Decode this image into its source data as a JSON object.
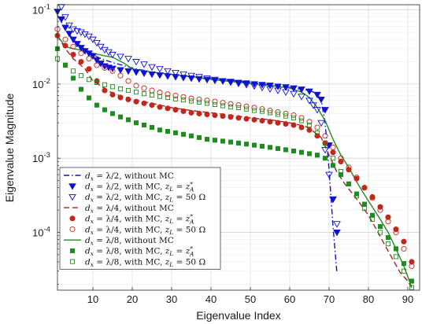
{
  "chart_data": {
    "type": "scatter",
    "xlabel": "Eigenvalue Index",
    "ylabel": "Eigenvalue Magnitude",
    "xlim": [
      1,
      93
    ],
    "ylim_log10": [
      -4.78,
      -0.93
    ],
    "xticks": [
      10,
      20,
      30,
      40,
      50,
      60,
      70,
      80,
      90
    ],
    "xtick_labels": [
      "10",
      "20",
      "30",
      "40",
      "50",
      "60",
      "70",
      "80",
      "90"
    ],
    "yticks_exp": [
      -4,
      -3,
      -2,
      -1
    ],
    "ytick_base": "10",
    "ytick_exponents": [
      "-4",
      "-3",
      "-2",
      "-1"
    ],
    "grid": true,
    "legend_position": "bottom-left",
    "series": [
      {
        "name": "dx = λ/2, without MC",
        "style": "dashdot",
        "color": "#1010d0",
        "x": [
          1,
          3,
          5,
          7,
          10,
          12,
          15,
          20,
          25,
          30,
          35,
          40,
          45,
          50,
          55,
          60,
          63,
          65,
          66,
          67,
          68,
          69,
          70,
          71,
          72
        ],
        "y": [
          0.085,
          0.055,
          0.04,
          0.032,
          0.025,
          0.022,
          0.0195,
          0.0165,
          0.0145,
          0.0135,
          0.0125,
          0.012,
          0.0112,
          0.0105,
          0.0098,
          0.009,
          0.0085,
          0.0082,
          0.0078,
          0.0073,
          0.006,
          0.003,
          0.0007,
          0.00012,
          2.8e-05
        ]
      },
      {
        "name": "dx = λ/2, with MC, zL = zA*",
        "style": "triangle-down-filled",
        "color": "#1010d0",
        "x": [
          1,
          2,
          3,
          4,
          5,
          6,
          7,
          8,
          9,
          10,
          11,
          12,
          13,
          14,
          15,
          17,
          19,
          21,
          23,
          25,
          27,
          29,
          31,
          33,
          35,
          37,
          39,
          41,
          43,
          45,
          47,
          49,
          51,
          53,
          55,
          57,
          59,
          61,
          63,
          65,
          67,
          68,
          69,
          70,
          71,
          72
        ],
        "y": [
          0.095,
          0.075,
          0.058,
          0.048,
          0.04,
          0.035,
          0.031,
          0.028,
          0.026,
          0.024,
          0.021,
          0.019,
          0.0175,
          0.0168,
          0.0162,
          0.0155,
          0.015,
          0.0145,
          0.014,
          0.0136,
          0.0132,
          0.0128,
          0.0125,
          0.0122,
          0.012,
          0.0117,
          0.0115,
          0.0112,
          0.011,
          0.0108,
          0.0105,
          0.0103,
          0.01,
          0.0098,
          0.0096,
          0.0093,
          0.0091,
          0.0088,
          0.0085,
          0.008,
          0.0072,
          0.0062,
          0.0045,
          0.0015,
          0.00028,
          0.0001
        ]
      },
      {
        "name": "dx = λ/2, with MC, zL = 50 Ω",
        "style": "triangle-down-open",
        "color": "#1010d0",
        "x": [
          2,
          3,
          4,
          5,
          6,
          7,
          8,
          9,
          10,
          11,
          12,
          13,
          14,
          15,
          17,
          19,
          21,
          23,
          25,
          27,
          29,
          31,
          33,
          35,
          37,
          39,
          41,
          43,
          45,
          47,
          49,
          51,
          53,
          55,
          57,
          59,
          61,
          63,
          65,
          66,
          67,
          68,
          69,
          70,
          71,
          72
        ],
        "y": [
          0.11,
          0.08,
          0.062,
          0.055,
          0.052,
          0.05,
          0.047,
          0.044,
          0.04,
          0.036,
          0.032,
          0.029,
          0.027,
          0.025,
          0.0235,
          0.022,
          0.02,
          0.0185,
          0.017,
          0.016,
          0.015,
          0.0142,
          0.0136,
          0.013,
          0.0125,
          0.012,
          0.0115,
          0.011,
          0.0106,
          0.0102,
          0.0098,
          0.0094,
          0.009,
          0.0086,
          0.0082,
          0.0078,
          0.0074,
          0.0068,
          0.006,
          0.0052,
          0.0045,
          0.003,
          0.0013,
          0.0006,
          0.00028,
          0.00013
        ]
      },
      {
        "name": "dx = λ/4, without MC",
        "style": "dashed",
        "color": "#a0281e",
        "x": [
          1,
          3,
          5,
          8,
          10,
          15,
          20,
          25,
          30,
          35,
          40,
          45,
          50,
          55,
          60,
          64,
          66,
          68,
          70,
          72,
          74,
          76,
          78,
          80,
          82,
          84,
          86,
          88,
          90,
          91
        ],
        "y": [
          0.045,
          0.03,
          0.022,
          0.016,
          0.011,
          0.0075,
          0.0062,
          0.0055,
          0.0048,
          0.0044,
          0.0041,
          0.0038,
          0.0035,
          0.0033,
          0.003,
          0.0027,
          0.0023,
          0.0019,
          0.0011,
          0.00065,
          0.00045,
          0.00033,
          0.00024,
          0.00017,
          0.00011,
          7e-05,
          4.5e-05,
          2.9e-05,
          2.2e-05,
          1.8e-05
        ]
      },
      {
        "name": "dx = λ/4, with MC, zL = zA*",
        "style": "circle-filled",
        "color": "#c0281e",
        "x": [
          1,
          3,
          5,
          7,
          9,
          11,
          13,
          15,
          17,
          19,
          21,
          23,
          25,
          27,
          29,
          31,
          33,
          35,
          37,
          39,
          41,
          43,
          45,
          47,
          49,
          51,
          53,
          55,
          57,
          59,
          61,
          63,
          65,
          67,
          69,
          71,
          73,
          75,
          77,
          79,
          81,
          83,
          85,
          87,
          89,
          91
        ],
        "y": [
          0.045,
          0.033,
          0.025,
          0.02,
          0.016,
          0.011,
          0.0082,
          0.0072,
          0.0066,
          0.0062,
          0.0058,
          0.0055,
          0.0052,
          0.0049,
          0.0047,
          0.0045,
          0.0043,
          0.0041,
          0.004,
          0.0039,
          0.0038,
          0.0037,
          0.0036,
          0.0035,
          0.0034,
          0.0033,
          0.0032,
          0.0031,
          0.003,
          0.0029,
          0.0028,
          0.0026,
          0.0024,
          0.002,
          0.0016,
          0.0012,
          0.0009,
          0.0007,
          0.00053,
          0.0004,
          0.0003,
          0.00022,
          0.00016,
          0.00011,
          7.5e-05,
          4e-05
        ]
      },
      {
        "name": "dx = λ/4, with MC, zL = 50 Ω",
        "style": "circle-open",
        "color": "#c0281e",
        "x": [
          1,
          3,
          5,
          7,
          9,
          11,
          13,
          15,
          17,
          19,
          21,
          23,
          25,
          27,
          29,
          31,
          33,
          35,
          37,
          39,
          41,
          43,
          45,
          47,
          49,
          51,
          53,
          55,
          57,
          59,
          61,
          63,
          65,
          67,
          69,
          71,
          73,
          75,
          77,
          79,
          81,
          83,
          85,
          87,
          89,
          91
        ],
        "y": [
          0.055,
          0.04,
          0.032,
          0.026,
          0.022,
          0.018,
          0.0165,
          0.015,
          0.013,
          0.011,
          0.0095,
          0.0088,
          0.0082,
          0.0077,
          0.0073,
          0.007,
          0.0067,
          0.0064,
          0.0062,
          0.006,
          0.0058,
          0.0056,
          0.0054,
          0.0052,
          0.005,
          0.0048,
          0.0046,
          0.0044,
          0.0042,
          0.004,
          0.0038,
          0.0035,
          0.0031,
          0.0026,
          0.002,
          0.0014,
          0.001,
          0.00075,
          0.00055,
          0.0004,
          0.00029,
          0.0002,
          0.00014,
          0.0001,
          6e-05,
          3.5e-05
        ]
      },
      {
        "name": "dx = λ/8, without MC",
        "style": "solid",
        "color": "#1e8c1e",
        "x": [
          1,
          3,
          5,
          8,
          10,
          13,
          15,
          18,
          20,
          25,
          30,
          35,
          40,
          45,
          50,
          55,
          60,
          63,
          65,
          67,
          69,
          71,
          73,
          75,
          77,
          79,
          81,
          83,
          85,
          87,
          89,
          91
        ],
        "y": [
          0.045,
          0.032,
          0.03,
          0.028,
          0.026,
          0.024,
          0.023,
          0.019,
          0.016,
          0.0145,
          0.0135,
          0.0125,
          0.0115,
          0.0108,
          0.0102,
          0.0096,
          0.0088,
          0.0078,
          0.0066,
          0.0048,
          0.0032,
          0.0018,
          0.0011,
          0.00075,
          0.00048,
          0.00032,
          0.00022,
          0.00015,
          0.0001,
          6e-05,
          3.5e-05,
          1.8e-05
        ]
      },
      {
        "name": "dx = λ/8, with MC, zL = zA*",
        "style": "square-filled",
        "color": "#1e8c1e",
        "x": [
          1,
          3,
          5,
          7,
          9,
          11,
          13,
          15,
          17,
          19,
          21,
          23,
          25,
          27,
          29,
          31,
          33,
          35,
          37,
          39,
          41,
          43,
          45,
          47,
          49,
          51,
          53,
          55,
          57,
          59,
          61,
          63,
          65,
          67,
          69,
          71,
          73,
          75,
          77,
          79,
          81,
          83,
          85,
          87,
          89,
          91
        ],
        "y": [
          0.03,
          0.018,
          0.012,
          0.0085,
          0.0065,
          0.0052,
          0.0045,
          0.004,
          0.0036,
          0.0033,
          0.003,
          0.0028,
          0.0026,
          0.0024,
          0.0023,
          0.0022,
          0.0021,
          0.002,
          0.0019,
          0.0018,
          0.00175,
          0.0017,
          0.00165,
          0.0016,
          0.00155,
          0.0015,
          0.00145,
          0.0014,
          0.00135,
          0.0013,
          0.00125,
          0.0012,
          0.00115,
          0.0011,
          0.001,
          0.0008,
          0.0006,
          0.00045,
          0.00033,
          0.00024,
          0.00017,
          0.00012,
          8.5e-05,
          6e-05,
          3.8e-05,
          2.2e-05
        ]
      },
      {
        "name": "dx = λ/8, with MC, zL = 50 Ω",
        "style": "square-open",
        "color": "#1e8c1e",
        "x": [
          1,
          3,
          5,
          7,
          9,
          11,
          13,
          15,
          17,
          19,
          21,
          23,
          25,
          27,
          29,
          31,
          33,
          35,
          37,
          39,
          41,
          43,
          45,
          47,
          49,
          51,
          53,
          55,
          57,
          59,
          61,
          63,
          65,
          67,
          69,
          71,
          73,
          75,
          77,
          79,
          81,
          83,
          85,
          87,
          89,
          91
        ],
        "y": [
          0.022,
          0.018,
          0.015,
          0.013,
          0.0115,
          0.0105,
          0.0098,
          0.0092,
          0.0086,
          0.0082,
          0.0078,
          0.0074,
          0.0071,
          0.0068,
          0.0066,
          0.0063,
          0.0061,
          0.0059,
          0.0057,
          0.0055,
          0.0053,
          0.0051,
          0.0049,
          0.0048,
          0.0046,
          0.0044,
          0.0043,
          0.0041,
          0.0039,
          0.0037,
          0.0035,
          0.0032,
          0.0028,
          0.0022,
          0.0016,
          0.001,
          0.00066,
          0.00045,
          0.00031,
          0.00021,
          0.00015,
          0.0001,
          7e-05,
          4.7e-05,
          3e-05,
          1.8e-05
        ]
      }
    ]
  },
  "legend": {
    "entries": [
      {
        "prefix": "d",
        "sub": "x",
        "eq": " = λ/2, without MC",
        "z": "",
        "zsub": "",
        "zval": "",
        "zvalsub": "",
        "zvalsup": ""
      },
      {
        "prefix": "d",
        "sub": "x",
        "eq": " = λ/2, with MC, ",
        "z": "z",
        "zsub": "L",
        "zval": " = z",
        "zvalsub": "A",
        "zvalsup": "*"
      },
      {
        "prefix": "d",
        "sub": "x",
        "eq": " = λ/2, with MC, ",
        "z": "z",
        "zsub": "L",
        "zval": " = 50 Ω",
        "zvalsub": "",
        "zvalsup": ""
      },
      {
        "prefix": "d",
        "sub": "x",
        "eq": " = λ/4, without MC",
        "z": "",
        "zsub": "",
        "zval": "",
        "zvalsub": "",
        "zvalsup": ""
      },
      {
        "prefix": "d",
        "sub": "x",
        "eq": " = λ/4, with MC, ",
        "z": "z",
        "zsub": "L",
        "zval": " = z",
        "zvalsub": "A",
        "zvalsup": "*"
      },
      {
        "prefix": "d",
        "sub": "x",
        "eq": " = λ/4, with MC, ",
        "z": "z",
        "zsub": "L",
        "zval": " = 50 Ω",
        "zvalsub": "",
        "zvalsup": ""
      },
      {
        "prefix": "d",
        "sub": "x",
        "eq": " = λ/8, without MC",
        "z": "",
        "zsub": "",
        "zval": "",
        "zvalsub": "",
        "zvalsup": ""
      },
      {
        "prefix": "d",
        "sub": "x",
        "eq": " = λ/8, with MC, ",
        "z": "z",
        "zsub": "L",
        "zval": " = z",
        "zvalsub": "A",
        "zvalsup": "*"
      },
      {
        "prefix": "d",
        "sub": "x",
        "eq": " = λ/8, with MC, ",
        "z": "z",
        "zsub": "L",
        "zval": " = 50 Ω",
        "zvalsub": "",
        "zvalsup": ""
      }
    ]
  }
}
